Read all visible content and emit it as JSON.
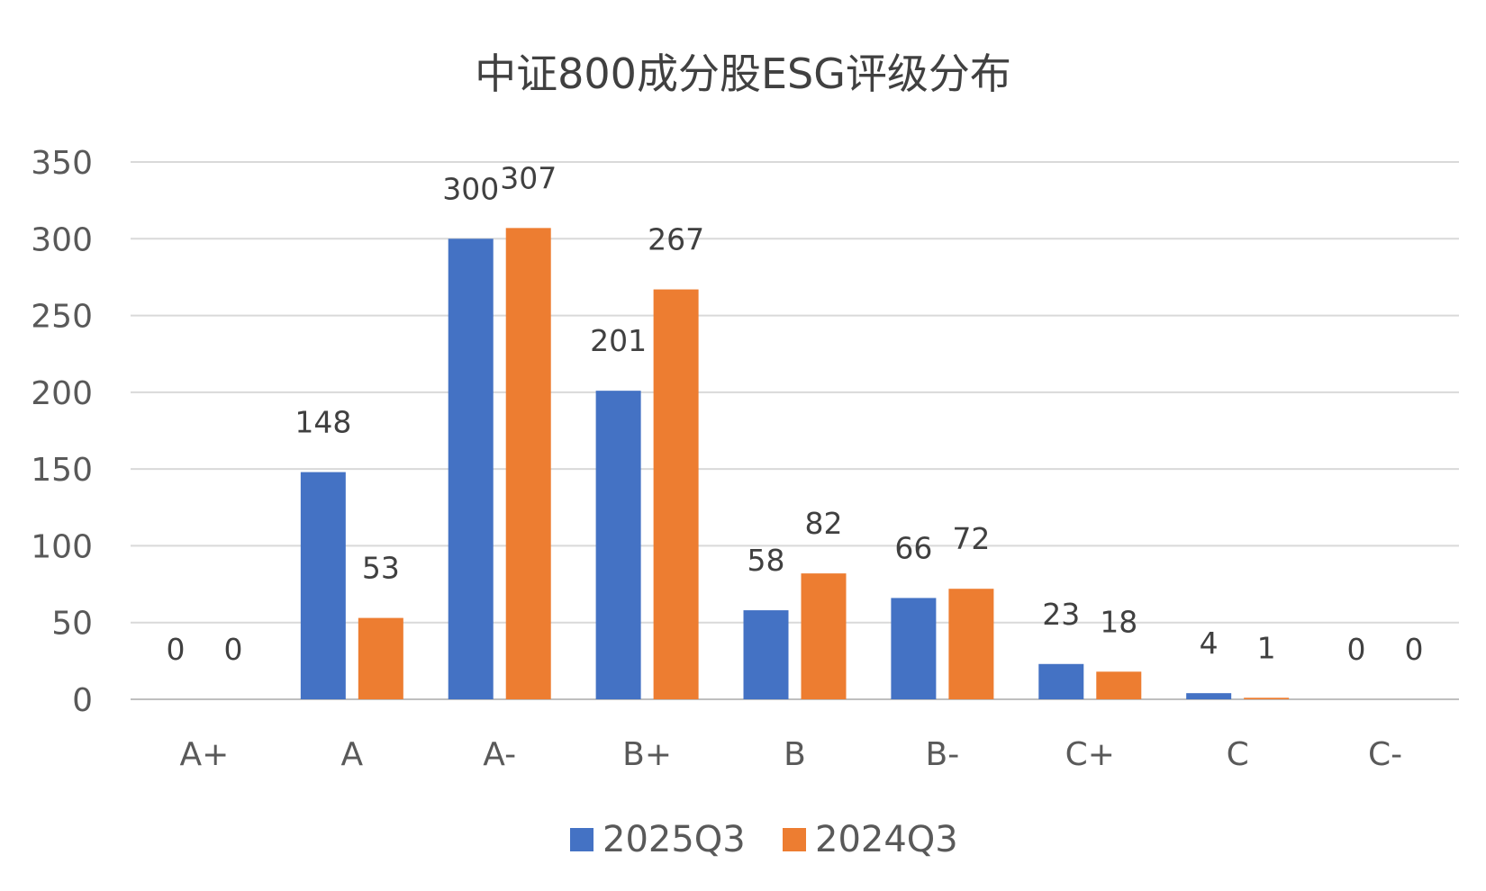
{
  "chart_data": {
    "type": "bar",
    "title": "中证800成分股ESG评级分布",
    "categories": [
      "A+",
      "A",
      "A-",
      "B+",
      "B",
      "B-",
      "C+",
      "C",
      "C-"
    ],
    "series": [
      {
        "name": "2025Q3",
        "color": "#4472C4",
        "values": [
          0,
          148,
          300,
          201,
          58,
          66,
          23,
          4,
          0
        ]
      },
      {
        "name": "2024Q3",
        "color": "#ED7D31",
        "values": [
          0,
          53,
          307,
          267,
          82,
          72,
          18,
          1,
          0
        ]
      }
    ],
    "ylim": [
      0,
      350
    ],
    "yticks": [
      0,
      50,
      100,
      150,
      200,
      250,
      300,
      350
    ],
    "xlabel": "",
    "ylabel": "",
    "grid": true,
    "legend": "bottom"
  }
}
